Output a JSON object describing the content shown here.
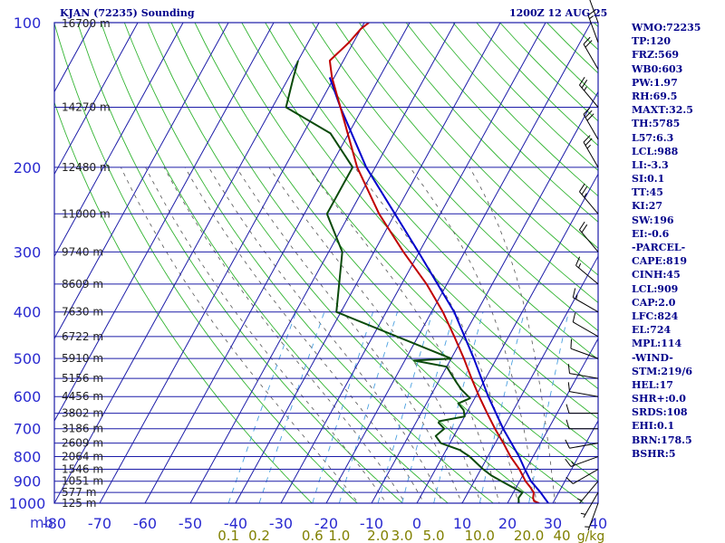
{
  "header": {
    "station_title": "KJAN (72235) Sounding",
    "time_title": "1200Z 12 AUG 25"
  },
  "pressure_unit_label": "mb",
  "indices": [
    "WMO:72235",
    "TP:120",
    "FRZ:569",
    "WB0:603",
    "PW:1.97",
    "RH:69.5",
    "MAXT:32.5",
    "TH:5785",
    "L57:6.3",
    "LCL:988",
    "LI:-3.3",
    "SI:0.1",
    "TT:45",
    "KI:27",
    "SW:196",
    "EI:-0.6",
    "-PARCEL-",
    "CAPE:819",
    "CINH:45",
    "LCL:909",
    "CAP:2.0",
    "LFC:824",
    "EL:724",
    "MPL:114",
    "-WIND-",
    "STM:219/6",
    "HEL:17",
    "SHR+:0.0",
    "SRDS:108",
    "EHI:0.1",
    "BRN:178.5",
    "BSHR:5"
  ],
  "colors": {
    "isobar": "#1c1ca8",
    "isotherm": "#1c1ca8",
    "dry_adiabat": "#32b432",
    "moist_adiabat": "#555555",
    "mixing_ratio": "#4aa0e0",
    "temperature": "#c00000",
    "dewpoint": "#0a4a0a",
    "parcel": "#0000cc",
    "axis_text": "#2a2ad0",
    "mixing_text": "#808000",
    "height_text": "#222222"
  },
  "chart_data": {
    "type": "skew-t",
    "title": "KJAN (72235) Sounding",
    "y_axis": {
      "unit": "mb",
      "scale": "log",
      "range": [
        1000,
        100
      ],
      "tick_labels": [
        "100",
        "200",
        "300",
        "400",
        "500",
        "600",
        "700",
        "800",
        "900",
        "1000"
      ]
    },
    "x_axis": {
      "unit": "°C",
      "range": [
        -80,
        40
      ],
      "tick_labels": [
        "-80",
        "-70",
        "-60",
        "-50",
        "-40",
        "-30",
        "-20",
        "-10",
        "0",
        "10",
        "20",
        "30",
        "40"
      ]
    },
    "mixing_ratio_labels": [
      {
        "value": 0.1,
        "label": "0.1"
      },
      {
        "value": 0.2,
        "label": "0.2"
      },
      {
        "value": 0.6,
        "label": "0.6"
      },
      {
        "value": 1.0,
        "label": "1.0"
      },
      {
        "value": 2.0,
        "label": "2.0"
      },
      {
        "value": 3.0,
        "label": "3.0"
      },
      {
        "value": 5.0,
        "label": "5.0"
      },
      {
        "value": 10.0,
        "label": "10.0"
      },
      {
        "value": 20.0,
        "label": "20.0"
      }
    ],
    "mixing_ratio_unit": "g/kg",
    "height_labels": [
      {
        "p": 1000,
        "label": "125 m"
      },
      {
        "p": 950,
        "label": "577 m"
      },
      {
        "p": 900,
        "label": "1051 m"
      },
      {
        "p": 850,
        "label": "1546 m"
      },
      {
        "p": 800,
        "label": "2064 m"
      },
      {
        "p": 750,
        "label": "2609 m"
      },
      {
        "p": 700,
        "label": "3186 m"
      },
      {
        "p": 650,
        "label": "3802 m"
      },
      {
        "p": 600,
        "label": "4456 m"
      },
      {
        "p": 550,
        "label": "5156 m"
      },
      {
        "p": 500,
        "label": "5910 m"
      },
      {
        "p": 450,
        "label": "6722 m"
      },
      {
        "p": 400,
        "label": "7630 m"
      },
      {
        "p": 350,
        "label": "8609 m"
      },
      {
        "p": 300,
        "label": "9740 m"
      },
      {
        "p": 250,
        "label": "11000 m"
      },
      {
        "p": 200,
        "label": "12480 m"
      },
      {
        "p": 150,
        "label": "14270 m"
      },
      {
        "p": 100,
        "label": "16700 m"
      }
    ],
    "temperature": [
      [
        1000,
        27
      ],
      [
        990,
        25.6
      ],
      [
        975,
        25
      ],
      [
        950,
        24.5
      ],
      [
        925,
        23
      ],
      [
        900,
        21.3
      ],
      [
        850,
        18.5
      ],
      [
        800,
        15
      ],
      [
        750,
        11.8
      ],
      [
        700,
        8.2
      ],
      [
        650,
        4.6
      ],
      [
        600,
        0.8
      ],
      [
        550,
        -3.1
      ],
      [
        500,
        -7.2
      ],
      [
        450,
        -12
      ],
      [
        400,
        -17.5
      ],
      [
        350,
        -24.5
      ],
      [
        300,
        -33.5
      ],
      [
        250,
        -43.5
      ],
      [
        200,
        -54
      ],
      [
        150,
        -65
      ],
      [
        130,
        -70.5
      ],
      [
        120,
        -73
      ],
      [
        110,
        -71
      ],
      [
        103,
        -70
      ],
      [
        100,
        -69
      ]
    ],
    "dewpoint": [
      [
        1000,
        22.5
      ],
      [
        975,
        21.8
      ],
      [
        950,
        22
      ],
      [
        925,
        19
      ],
      [
        900,
        16
      ],
      [
        875,
        13
      ],
      [
        850,
        10.5
      ],
      [
        800,
        6
      ],
      [
        775,
        3
      ],
      [
        750,
        -2
      ],
      [
        725,
        -4
      ],
      [
        700,
        -3
      ],
      [
        680,
        -5
      ],
      [
        675,
        -5
      ],
      [
        660,
        0
      ],
      [
        640,
        -1
      ],
      [
        620,
        -3
      ],
      [
        605,
        -1
      ],
      [
        580,
        -4
      ],
      [
        560,
        -6
      ],
      [
        540,
        -8
      ],
      [
        520,
        -10
      ],
      [
        505,
        -18
      ],
      [
        500,
        -10
      ],
      [
        400,
        -41
      ],
      [
        300,
        -47
      ],
      [
        250,
        -55
      ],
      [
        200,
        -55
      ],
      [
        170,
        -64
      ],
      [
        150,
        -77
      ],
      [
        130,
        -79
      ],
      [
        120,
        -80
      ]
    ],
    "parcel": [
      [
        1000,
        29
      ],
      [
        950,
        26
      ],
      [
        900,
        22.5
      ],
      [
        850,
        19.7
      ],
      [
        800,
        16.9
      ],
      [
        700,
        10
      ],
      [
        600,
        2.8
      ],
      [
        500,
        -5
      ],
      [
        400,
        -15
      ],
      [
        300,
        -30.2
      ],
      [
        250,
        -40
      ],
      [
        200,
        -52
      ],
      [
        150,
        -65
      ],
      [
        130,
        -71
      ]
    ],
    "wind_barbs": [
      {
        "p": 1000,
        "dir": 200,
        "spd": 5
      },
      {
        "p": 950,
        "dir": 210,
        "spd": 5
      },
      {
        "p": 900,
        "dir": 220,
        "spd": 5
      },
      {
        "p": 850,
        "dir": 240,
        "spd": 10
      },
      {
        "p": 800,
        "dir": 250,
        "spd": 15
      },
      {
        "p": 750,
        "dir": 260,
        "spd": 10
      },
      {
        "p": 700,
        "dir": 270,
        "spd": 10
      },
      {
        "p": 650,
        "dir": 270,
        "spd": 10
      },
      {
        "p": 600,
        "dir": 280,
        "spd": 10
      },
      {
        "p": 550,
        "dir": 280,
        "spd": 10
      },
      {
        "p": 500,
        "dir": 290,
        "spd": 10
      },
      {
        "p": 450,
        "dir": 300,
        "spd": 10
      },
      {
        "p": 400,
        "dir": 300,
        "spd": 15
      },
      {
        "p": 350,
        "dir": 310,
        "spd": 15
      },
      {
        "p": 300,
        "dir": 320,
        "spd": 20
      },
      {
        "p": 250,
        "dir": 320,
        "spd": 25
      },
      {
        "p": 200,
        "dir": 330,
        "spd": 25
      },
      {
        "p": 175,
        "dir": 330,
        "spd": 30
      },
      {
        "p": 150,
        "dir": 320,
        "spd": 25
      },
      {
        "p": 125,
        "dir": 330,
        "spd": 20
      },
      {
        "p": 110,
        "dir": 340,
        "spd": 15
      },
      {
        "p": 100,
        "dir": 340,
        "spd": 10
      }
    ]
  }
}
